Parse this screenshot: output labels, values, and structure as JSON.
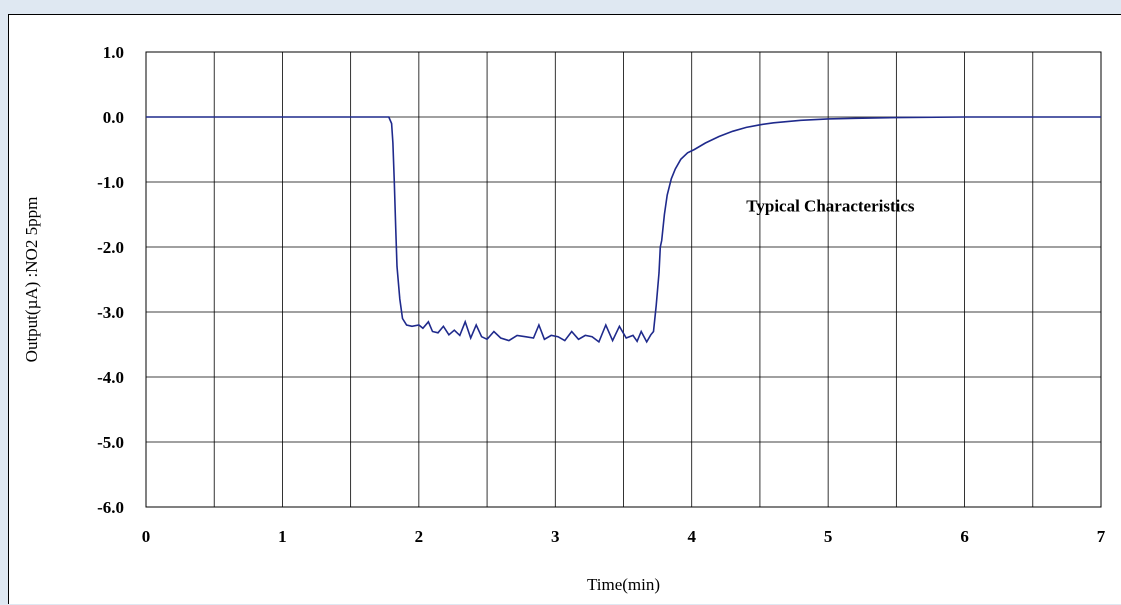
{
  "chart_data": {
    "type": "line",
    "title": "",
    "xlabel": "Time(min)",
    "ylabel": "Output(µA) :NO2 5ppm",
    "xlim": [
      0,
      7
    ],
    "ylim": [
      -6.0,
      1.0
    ],
    "x_ticks": [
      "0",
      "1",
      "2",
      "3",
      "4",
      "5",
      "6",
      "7"
    ],
    "y_ticks": [
      "1.0",
      "0.0",
      "-1.0",
      "-2.0",
      "-3.0",
      "-4.0",
      "-5.0",
      "-6.0"
    ],
    "grid": true,
    "annotation": "Typical Characteristics",
    "line_color": "#1f2a8c",
    "series": [
      {
        "x": [
          0,
          0.5,
          1.0,
          1.5,
          1.75,
          1.78,
          1.8,
          1.81,
          1.82,
          1.83,
          1.84,
          1.86,
          1.88,
          1.91,
          1.95,
          2.0,
          2.03,
          2.07,
          2.1,
          2.14,
          2.18,
          2.22,
          2.26,
          2.3,
          2.34,
          2.38,
          2.42,
          2.46,
          2.5,
          2.55,
          2.6,
          2.66,
          2.72,
          2.78,
          2.84,
          2.88,
          2.92,
          2.97,
          3.02,
          3.07,
          3.12,
          3.17,
          3.22,
          3.27,
          3.32,
          3.37,
          3.42,
          3.47,
          3.52,
          3.57,
          3.6,
          3.63,
          3.67,
          3.7,
          3.72,
          3.74,
          3.76,
          3.77,
          3.78,
          3.8,
          3.82,
          3.85,
          3.88,
          3.92,
          3.97,
          4.02,
          4.1,
          4.2,
          4.3,
          4.4,
          4.5,
          4.6,
          4.7,
          4.8,
          5.0,
          5.2,
          5.5,
          6.0,
          6.5,
          7.0
        ],
        "y": [
          0.0,
          0.0,
          0.0,
          0.0,
          0.0,
          0.0,
          -0.1,
          -0.4,
          -1.0,
          -1.7,
          -2.3,
          -2.8,
          -3.1,
          -3.2,
          -3.22,
          -3.2,
          -3.25,
          -3.15,
          -3.3,
          -3.32,
          -3.22,
          -3.35,
          -3.28,
          -3.36,
          -3.15,
          -3.4,
          -3.2,
          -3.38,
          -3.42,
          -3.3,
          -3.4,
          -3.44,
          -3.36,
          -3.38,
          -3.4,
          -3.2,
          -3.42,
          -3.36,
          -3.38,
          -3.44,
          -3.3,
          -3.42,
          -3.36,
          -3.38,
          -3.46,
          -3.2,
          -3.44,
          -3.22,
          -3.4,
          -3.36,
          -3.45,
          -3.3,
          -3.46,
          -3.35,
          -3.3,
          -2.9,
          -2.4,
          -2.0,
          -1.9,
          -1.5,
          -1.2,
          -0.95,
          -0.8,
          -0.65,
          -0.55,
          -0.5,
          -0.4,
          -0.3,
          -0.22,
          -0.16,
          -0.12,
          -0.09,
          -0.07,
          -0.05,
          -0.03,
          -0.02,
          -0.01,
          0.0,
          0.0,
          0.0
        ]
      }
    ]
  }
}
